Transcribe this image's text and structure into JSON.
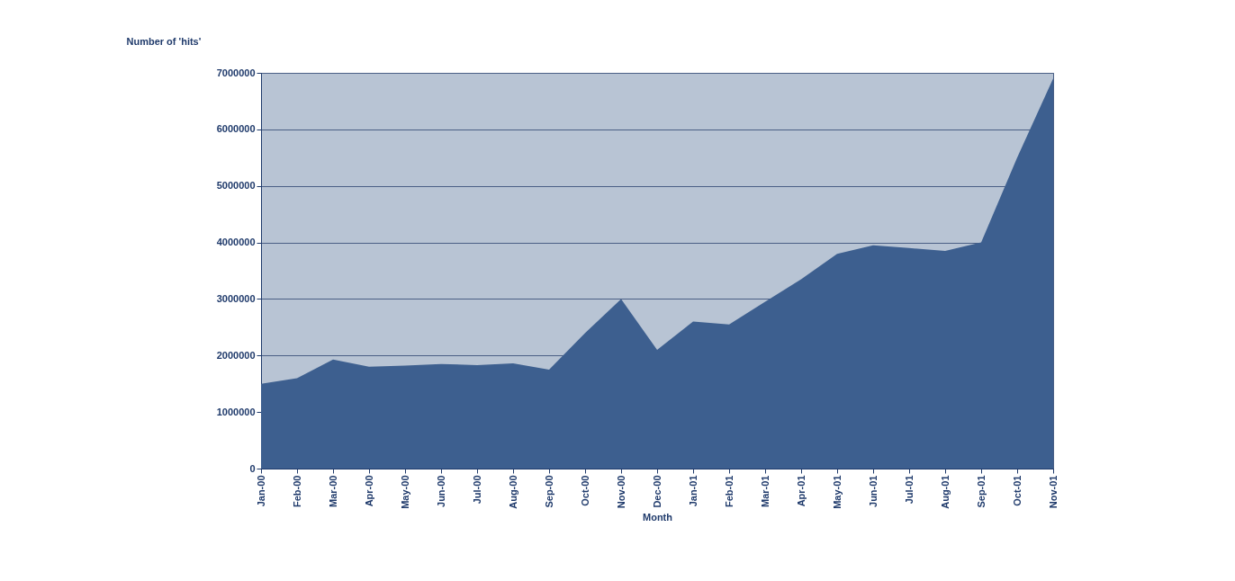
{
  "chart_data": {
    "type": "area",
    "ylabel": "Number of 'hits'",
    "xlabel": "Month",
    "categories": [
      "Jan-00",
      "Feb-00",
      "Mar-00",
      "Apr-00",
      "May-00",
      "Jun-00",
      "Jul-00",
      "Aug-00",
      "Sep-00",
      "Oct-00",
      "Nov-00",
      "Dec-00",
      "Jan-01",
      "Feb-01",
      "Mar-01",
      "Apr-01",
      "May-01",
      "Jun-01",
      "Jul-01",
      "Aug-01",
      "Sep-01",
      "Oct-01",
      "Nov-01"
    ],
    "series": [
      {
        "color": "#3d5f8f",
        "values": [
          1500000,
          1600000,
          1930000,
          1800000,
          1820000,
          1850000,
          1830000,
          1860000,
          1750000,
          2400000,
          3000000,
          2100000,
          2600000,
          2550000,
          2950000,
          3350000,
          3800000,
          3950000,
          3900000,
          3850000,
          4000000,
          5500000,
          6900000
        ]
      }
    ],
    "ylim": [
      0,
      7000000
    ],
    "yticks": [
      0,
      1000000,
      2000000,
      3000000,
      4000000,
      5000000,
      6000000,
      7000000
    ],
    "grid": "y"
  }
}
